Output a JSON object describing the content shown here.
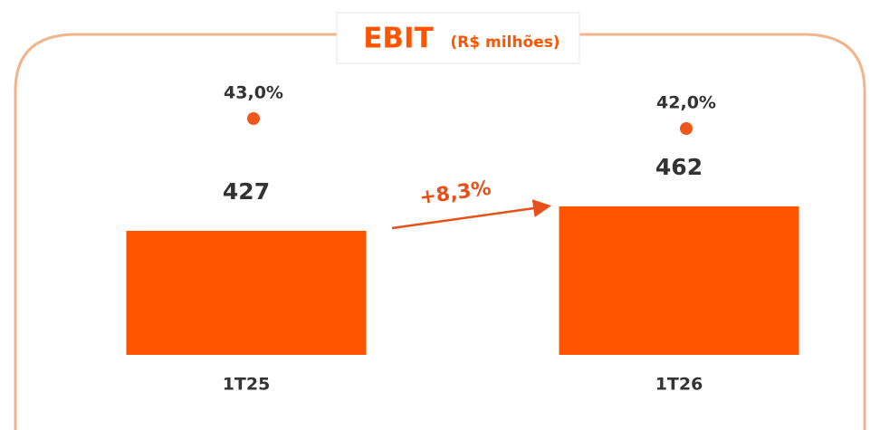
{
  "chart_data": {
    "type": "bar",
    "title": "EBIT",
    "subtitle": "(R$ milhões)",
    "categories": [
      "1T25",
      "1T26"
    ],
    "series": [
      {
        "type": "bar",
        "color": "#ff5500",
        "values": [
          427,
          462
        ]
      },
      {
        "type": "scatter",
        "axis": "y2",
        "color": "#f0571a",
        "values": [
          43.0,
          42.0
        ],
        "value_labels": [
          "43,0%",
          "42,0%"
        ]
      }
    ],
    "annotation": "+8,3%",
    "annotation_color": "#e8501a",
    "ylim": [
      250,
      500
    ],
    "y2lim": [
      35,
      45
    ],
    "grid": false
  }
}
